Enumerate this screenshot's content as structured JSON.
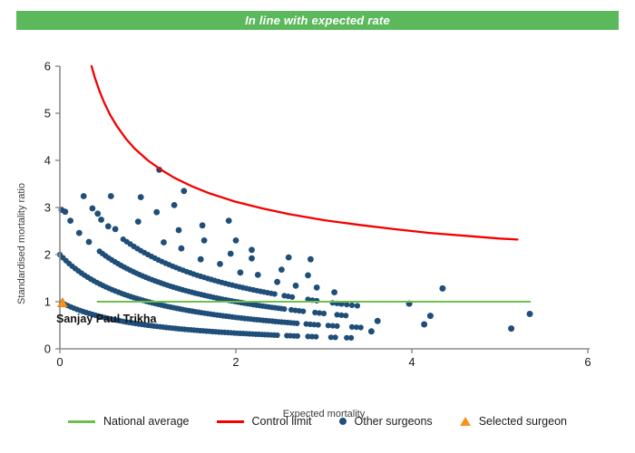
{
  "banner": {
    "text": "In line with expected rate"
  },
  "colors": {
    "banner_bg": "#5bb95c",
    "banner_text": "#ffffff",
    "other_surgeons": "#1f4e79",
    "control_limit": "#f40000",
    "national_average": "#6cbf4e",
    "selected_surgeon": "#f7941d",
    "selected_surgeon_edge": "#d87f1e",
    "axis_line": "#8c8c8c",
    "tick_label": "#1a1a1a",
    "axis_title": "#3c3c3c"
  },
  "chart_data": {
    "type": "scatter",
    "title": "In line with expected rate",
    "xlabel": "Expected mortality",
    "ylabel": "Standardised mortality ratio",
    "xlim": [
      0,
      6
    ],
    "ylim": [
      0,
      6
    ],
    "x_ticks": [
      0,
      2,
      4,
      6
    ],
    "y_ticks": [
      0,
      1,
      2,
      3,
      4,
      5,
      6
    ],
    "grid": false,
    "legend_position": "bottom",
    "national_average": {
      "y": 1,
      "x_start": 0.42,
      "x_end": 5.35
    },
    "control_limit": {
      "formula": "smr = 1 + 3/sqrt(expected)",
      "points": [
        [
          0.36,
          6.0
        ],
        [
          0.4,
          5.74
        ],
        [
          0.45,
          5.47
        ],
        [
          0.5,
          5.24
        ],
        [
          0.57,
          4.97
        ],
        [
          0.65,
          4.72
        ],
        [
          0.75,
          4.46
        ],
        [
          0.85,
          4.25
        ],
        [
          1.0,
          4.0
        ],
        [
          1.15,
          3.8
        ],
        [
          1.3,
          3.63
        ],
        [
          1.5,
          3.45
        ],
        [
          1.7,
          3.3
        ],
        [
          2.0,
          3.12
        ],
        [
          2.3,
          2.98
        ],
        [
          2.6,
          2.86
        ],
        [
          3.0,
          2.73
        ],
        [
          3.4,
          2.63
        ],
        [
          3.8,
          2.54
        ],
        [
          4.2,
          2.46
        ],
        [
          4.6,
          2.4
        ],
        [
          5.0,
          2.34
        ],
        [
          5.2,
          2.32
        ]
      ]
    },
    "surgeon_bands": {
      "band_formula": "smr = deaths / (1 + expected)",
      "dense": [
        {
          "deaths": 1,
          "ranges": [
            [
              0.02,
              2.5,
              0.035
            ],
            [
              2.58,
              2.7,
              0.04
            ],
            [
              2.82,
              2.94,
              0.045
            ],
            [
              3.08,
              3.16,
              0.05
            ],
            [
              3.26,
              3.32,
              0.05
            ]
          ]
        },
        {
          "deaths": 2,
          "ranges": [
            [
              0.0,
              2.72,
              0.035
            ],
            [
              2.8,
              2.95,
              0.045
            ],
            [
              3.05,
              3.18,
              0.05
            ],
            [
              3.32,
              3.42,
              0.05
            ]
          ]
        },
        {
          "deaths": 3,
          "ranges": [
            [
              0.45,
              2.55,
              0.035
            ],
            [
              2.63,
              2.78,
              0.045
            ],
            [
              2.9,
              3.02,
              0.05
            ],
            [
              3.15,
              3.25,
              0.05
            ]
          ]
        },
        {
          "deaths": 4,
          "ranges": [
            [
              0.72,
              2.45,
              0.04
            ],
            [
              2.55,
              2.68,
              0.045
            ],
            [
              2.82,
              2.95,
              0.05
            ],
            [
              3.1,
              3.2,
              0.05
            ],
            [
              3.26,
              3.38,
              0.06
            ]
          ]
        }
      ],
      "sparse": [
        {
          "deaths": 3,
          "points": [
            [
              0.02,
              2.95
            ],
            [
              0.06,
              2.91
            ],
            [
              0.12,
              2.72
            ],
            [
              0.22,
              2.46
            ],
            [
              0.33,
              2.27
            ]
          ]
        },
        {
          "deaths": 4,
          "points": [
            [
              0.27,
              3.24
            ],
            [
              0.37,
              2.98
            ],
            [
              0.43,
              2.87
            ],
            [
              0.47,
              2.74
            ],
            [
              0.55,
              2.6
            ],
            [
              0.63,
              2.54
            ]
          ]
        },
        {
          "deaths": 5,
          "points": [
            [
              0.58,
              3.24
            ],
            [
              0.89,
              2.7
            ],
            [
              1.18,
              2.26
            ],
            [
              1.38,
              2.13
            ],
            [
              1.6,
              1.9
            ],
            [
              1.82,
              1.8
            ],
            [
              2.05,
              1.62
            ],
            [
              2.25,
              1.57
            ],
            [
              2.47,
              1.42
            ],
            [
              2.68,
              1.34
            ],
            [
              2.92,
              1.3
            ],
            [
              3.12,
              1.2
            ]
          ]
        },
        {
          "deaths": 6,
          "points": [
            [
              0.92,
              3.22
            ],
            [
              1.1,
              2.9
            ],
            [
              1.35,
              2.52
            ],
            [
              1.64,
              2.3
            ],
            [
              1.94,
              2.02
            ],
            [
              2.18,
              1.92
            ],
            [
              2.52,
              1.68
            ],
            [
              2.82,
              1.56
            ]
          ]
        },
        {
          "deaths": 7,
          "points": [
            [
              1.3,
              3.05
            ],
            [
              1.62,
              2.62
            ],
            [
              2.0,
              2.3
            ],
            [
              2.18,
              2.1
            ],
            [
              2.6,
              1.94
            ],
            [
              2.85,
              1.9
            ]
          ]
        },
        {
          "deaths": 8,
          "points": [
            [
              1.13,
              3.8
            ],
            [
              1.41,
              3.35
            ],
            [
              1.92,
              2.72
            ]
          ]
        }
      ]
    },
    "isolated_points": [
      [
        3.54,
        0.37
      ],
      [
        3.61,
        0.59
      ],
      [
        3.97,
        0.96
      ],
      [
        4.14,
        0.52
      ],
      [
        4.21,
        0.7
      ],
      [
        4.35,
        1.28
      ],
      [
        5.13,
        0.43
      ],
      [
        5.34,
        0.74
      ]
    ],
    "selected_surgeon": {
      "name": "Sanjay Paul Trikha",
      "x": 0.03,
      "y": 0.97
    }
  },
  "legend": {
    "items": [
      {
        "label": "National average",
        "swatch": "line",
        "color_key": "national_average"
      },
      {
        "label": "Control limit",
        "swatch": "line",
        "color_key": "control_limit"
      },
      {
        "label": "Other surgeons",
        "swatch": "dot",
        "color_key": "other_surgeons"
      },
      {
        "label": "Selected surgeon",
        "swatch": "triangle",
        "color_key": "selected_surgeon"
      }
    ]
  }
}
